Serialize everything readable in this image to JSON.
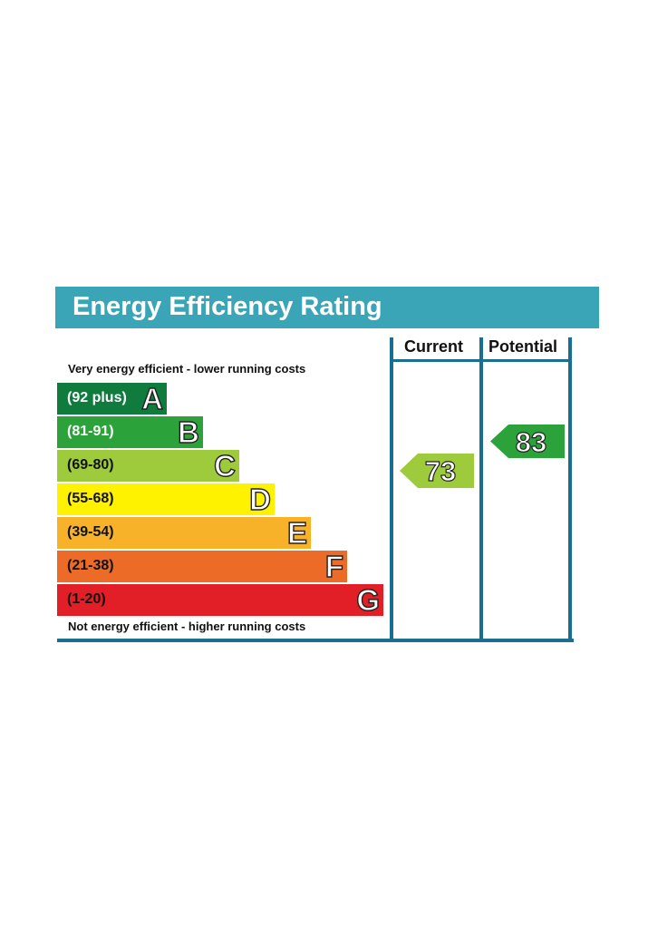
{
  "header": {
    "title": "Energy Efficiency Rating"
  },
  "columns": {
    "current": "Current",
    "potential": "Potential"
  },
  "captions": {
    "top": "Very energy efficient - lower running costs",
    "bottom": "Not energy efficient - higher running costs"
  },
  "bands": [
    {
      "range": "(92 plus)",
      "letter": "A",
      "color": "#0f7c3e",
      "text_color": "#ffffff"
    },
    {
      "range": "(81-91)",
      "letter": "B",
      "color": "#2ca33a",
      "text_color": "#ffffff"
    },
    {
      "range": "(69-80)",
      "letter": "C",
      "color": "#9dcb3b",
      "text_color": "#111111"
    },
    {
      "range": "(55-68)",
      "letter": "D",
      "color": "#fef200",
      "text_color": "#111111"
    },
    {
      "range": "(39-54)",
      "letter": "E",
      "color": "#f7b22a",
      "text_color": "#111111"
    },
    {
      "range": "(21-38)",
      "letter": "F",
      "color": "#ec6b27",
      "text_color": "#111111"
    },
    {
      "range": "(1-20)",
      "letter": "G",
      "color": "#e21f26",
      "text_color": "#111111"
    }
  ],
  "ratings": {
    "current": {
      "value": "73",
      "band": "C",
      "color": "#9dcb3b"
    },
    "potential": {
      "value": "83",
      "band": "B",
      "color": "#2ca33a"
    }
  },
  "frame_color": "#1a6e92"
}
